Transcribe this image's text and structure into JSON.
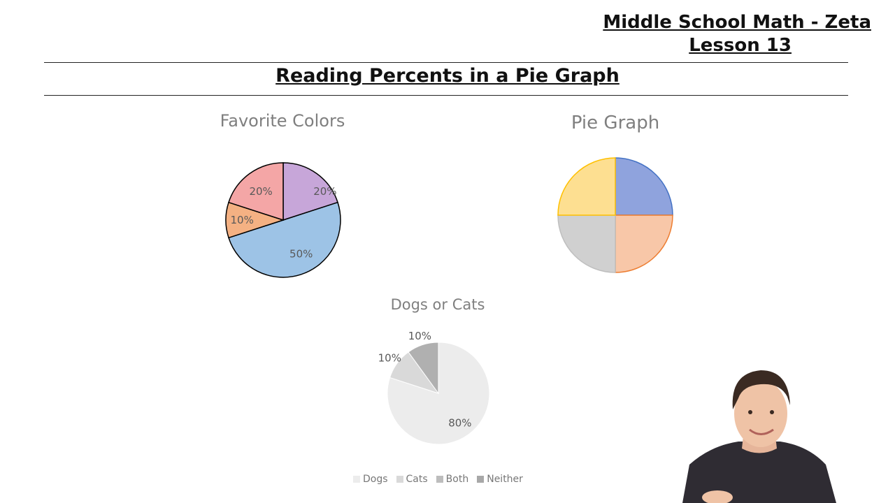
{
  "course": {
    "title": "Middle School Math - Zeta",
    "lesson": "Lesson 13"
  },
  "page_title": "Reading Percents in a Pie Graph",
  "chart_data": [
    {
      "type": "pie",
      "title": "Favorite Colors",
      "slices": [
        {
          "value": 20,
          "label": "20%",
          "color": "#c7a6d9"
        },
        {
          "value": 50,
          "label": "50%",
          "color": "#9dc3e6"
        },
        {
          "value": 10,
          "label": "10%",
          "color": "#f4b183"
        },
        {
          "value": 20,
          "label": "20%",
          "color": "#f4a6a6"
        }
      ]
    },
    {
      "type": "pie",
      "title": "Pie Graph",
      "slices": [
        {
          "value": 25,
          "color": "#8fa3dd",
          "stroke": "#4472c4"
        },
        {
          "value": 25,
          "color": "#f8c7a8",
          "stroke": "#ed7d31"
        },
        {
          "value": 25,
          "color": "#d0d0d0",
          "stroke": "#bfbfbf"
        },
        {
          "value": 25,
          "color": "#fddf91",
          "stroke": "#ffc000"
        }
      ]
    },
    {
      "type": "pie",
      "title": "Dogs or Cats",
      "slices": [
        {
          "value": 80,
          "label": "80%",
          "name": "Dogs",
          "color": "#ececec"
        },
        {
          "value": 10,
          "label": "10%",
          "name": "Cats",
          "color": "#d9d9d9"
        },
        {
          "value": 0,
          "label": "",
          "name": "Both",
          "color": "#bdbdbd"
        },
        {
          "value": 10,
          "label": "10%",
          "name": "Neither",
          "color": "#b0b0b0"
        }
      ],
      "legend": [
        {
          "name": "Dogs",
          "color": "#ececec"
        },
        {
          "name": "Cats",
          "color": "#d9d9d9"
        },
        {
          "name": "Both",
          "color": "#bdbdbd"
        },
        {
          "name": "Neither",
          "color": "#a8a8a8"
        }
      ],
      "legend_position": "bottom"
    }
  ]
}
